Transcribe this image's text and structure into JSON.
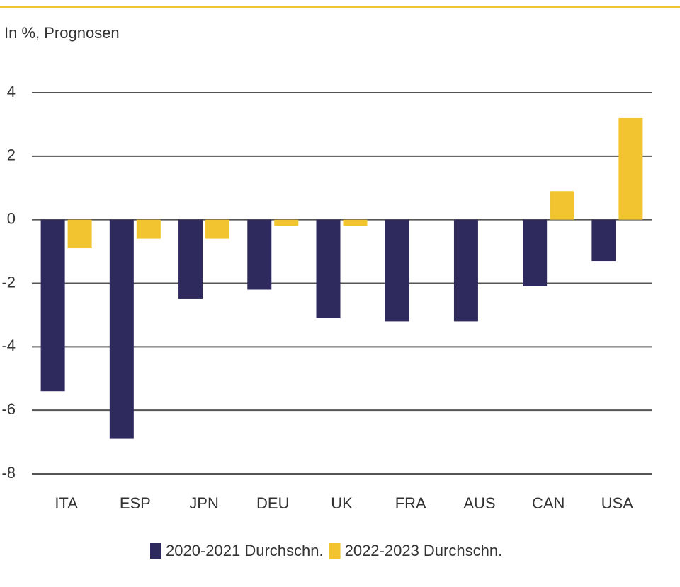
{
  "chart_data": {
    "type": "bar",
    "subtitle": "In %, Prognosen",
    "categories": [
      "ITA",
      "ESP",
      "JPN",
      "DEU",
      "UK",
      "FRA",
      "AUS",
      "CAN",
      "USA"
    ],
    "series": [
      {
        "name": "2020-2021 Durchschn.",
        "color": "#2e2a5e",
        "values": [
          -5.4,
          -6.9,
          -2.5,
          -2.2,
          -3.1,
          -3.2,
          -3.2,
          -2.1,
          -1.3
        ]
      },
      {
        "name": "2022-2023 Durchschn.",
        "color": "#f2c530",
        "values": [
          -0.9,
          -0.6,
          -0.6,
          -0.2,
          -0.2,
          0,
          0,
          0.9,
          3.2
        ]
      }
    ],
    "ylim": [
      -8,
      4
    ],
    "yticks": [
      -8,
      -6,
      -4,
      -2,
      0,
      2,
      4
    ],
    "grid": true
  }
}
